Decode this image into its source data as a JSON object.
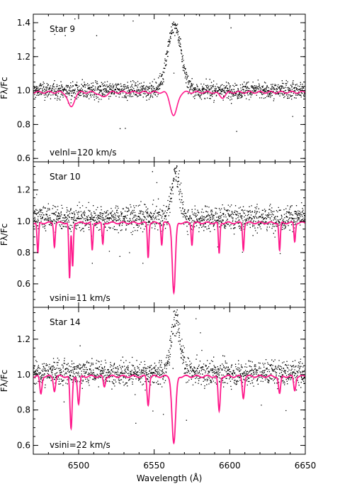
{
  "chart_data": {
    "type": "line",
    "xlabel": "Wavelength (Å)",
    "xlim": [
      6470,
      6650
    ],
    "x_ticks": [
      "6500",
      "6550",
      "6600",
      "6650"
    ],
    "x_tick_values": [
      6500,
      6550,
      6600,
      6650
    ],
    "grid": false,
    "legend": "none",
    "colors": {
      "observed": "#000000",
      "model": "#ff1a8c"
    },
    "panels": [
      {
        "id": "star9",
        "star_label": "Star 9",
        "rotation_label": "velnl=120 km/s",
        "ylabel": "Fλ/Fc",
        "ylim": [
          0.58,
          1.45
        ],
        "y_ticks": [
          "0.6",
          "0.8",
          "1.0",
          "1.2",
          "1.4"
        ],
        "y_tick_values": [
          0.6,
          0.8,
          1.0,
          1.2,
          1.4
        ],
        "observed_continuum": 1.0,
        "observed_noise": 0.025,
        "emission": {
          "center": 6563,
          "peak": 1.38,
          "width": 4.5
        },
        "model_absorptions": [
          {
            "center": 6495,
            "depth": 0.09,
            "width": 2.0
          },
          {
            "center": 6516,
            "depth": 0.03,
            "width": 2.0
          },
          {
            "center": 6563,
            "depth": 0.14,
            "width": 2.2
          },
          {
            "center": 6595,
            "depth": 0.03,
            "width": 2.0
          }
        ]
      },
      {
        "id": "star10",
        "star_label": "Star 10",
        "rotation_label": "vsini=11 km/s",
        "ylabel": "Fλ/Fc",
        "ylim": [
          0.45,
          1.38
        ],
        "y_ticks": [
          "0.6",
          "0.8",
          "1.0",
          "1.2"
        ],
        "y_tick_values": [
          0.6,
          0.8,
          1.0,
          1.2
        ],
        "observed_continuum": 1.02,
        "observed_noise": 0.04,
        "emission": {
          "center": 6564,
          "peak": 1.3,
          "width": 2.5
        },
        "model_absorptions": [
          {
            "center": 6473,
            "depth": 0.2,
            "width": 0.5
          },
          {
            "center": 6484,
            "depth": 0.15,
            "width": 0.5
          },
          {
            "center": 6494,
            "depth": 0.36,
            "width": 0.5
          },
          {
            "center": 6496,
            "depth": 0.28,
            "width": 0.5
          },
          {
            "center": 6509,
            "depth": 0.18,
            "width": 0.5
          },
          {
            "center": 6516,
            "depth": 0.14,
            "width": 0.5
          },
          {
            "center": 6546,
            "depth": 0.22,
            "width": 0.5
          },
          {
            "center": 6555,
            "depth": 0.14,
            "width": 0.5
          },
          {
            "center": 6563,
            "depth": 0.45,
            "width": 1.0
          },
          {
            "center": 6575,
            "depth": 0.14,
            "width": 0.5
          },
          {
            "center": 6593,
            "depth": 0.2,
            "width": 0.5
          },
          {
            "center": 6609,
            "depth": 0.17,
            "width": 0.5
          },
          {
            "center": 6633,
            "depth": 0.18,
            "width": 0.5
          },
          {
            "center": 6643,
            "depth": 0.12,
            "width": 0.5
          }
        ]
      },
      {
        "id": "star14",
        "star_label": "Star 14",
        "rotation_label": "vsini=22 km/s",
        "ylabel": "Fλ/Fc",
        "ylim": [
          0.55,
          1.38
        ],
        "y_ticks": [
          "0.6",
          "0.8",
          "1.0",
          "1.2"
        ],
        "y_tick_values": [
          0.6,
          0.8,
          1.0,
          1.2
        ],
        "observed_continuum": 1.01,
        "observed_noise": 0.035,
        "emission": {
          "center": 6564,
          "peak": 1.3,
          "width": 3.0
        },
        "model_absorptions": [
          {
            "center": 6475,
            "depth": 0.1,
            "width": 0.7
          },
          {
            "center": 6484,
            "depth": 0.08,
            "width": 0.7
          },
          {
            "center": 6495,
            "depth": 0.3,
            "width": 0.7
          },
          {
            "center": 6500,
            "depth": 0.16,
            "width": 0.7
          },
          {
            "center": 6517,
            "depth": 0.06,
            "width": 0.7
          },
          {
            "center": 6546,
            "depth": 0.16,
            "width": 0.7
          },
          {
            "center": 6563,
            "depth": 0.38,
            "width": 1.2
          },
          {
            "center": 6593,
            "depth": 0.2,
            "width": 0.7
          },
          {
            "center": 6609,
            "depth": 0.12,
            "width": 0.7
          },
          {
            "center": 6633,
            "depth": 0.1,
            "width": 0.7
          },
          {
            "center": 6643,
            "depth": 0.08,
            "width": 0.7
          }
        ]
      }
    ]
  }
}
